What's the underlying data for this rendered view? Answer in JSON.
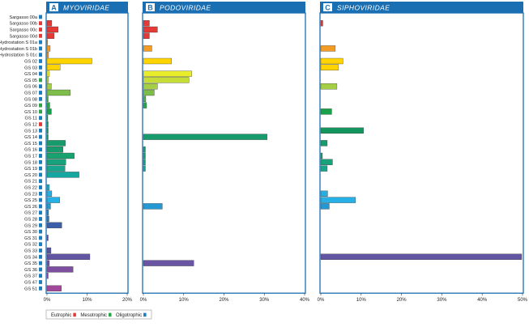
{
  "chart_data": {
    "type": "bar",
    "orientation": "horizontal",
    "sites": [
      "Sargasso 00a",
      "Sargasso 00b",
      "Sargasso 00c",
      "Sargasso 00d",
      "Hydrostation S 01a",
      "Hydrostation S 01b",
      "Hydrostation S 01c",
      "GS 02",
      "GS 03",
      "GS 04",
      "GS 05",
      "GS 06",
      "GS 07",
      "GS 08",
      "GS 09",
      "GS 10",
      "GS 11",
      "GS 12",
      "GS 13",
      "GS 14",
      "GS 15",
      "GS 16",
      "GS 17",
      "GS 18",
      "GS 19",
      "GS 20",
      "GS 21",
      "GS 22",
      "GS 23",
      "GS 25",
      "GS 26",
      "GS 27",
      "GS 28",
      "GS 29",
      "GS 30",
      "GS 31",
      "GS 32",
      "GS 33",
      "GS 34",
      "GS 35",
      "GS 36",
      "GS 37",
      "GS 47",
      "GS 51"
    ],
    "trophic": [
      "oligotrophic",
      "eutrophic",
      "eutrophic",
      "eutrophic",
      "oligotrophic",
      "oligotrophic",
      "oligotrophic",
      "oligotrophic",
      "oligotrophic",
      "oligotrophic",
      "mesotrophic",
      "oligotrophic",
      "oligotrophic",
      "oligotrophic",
      "mesotrophic",
      "mesotrophic",
      "oligotrophic",
      "eutrophic",
      "oligotrophic",
      "oligotrophic",
      "oligotrophic",
      "oligotrophic",
      "oligotrophic",
      "oligotrophic",
      "oligotrophic",
      "oligotrophic",
      "oligotrophic",
      "oligotrophic",
      "oligotrophic",
      "oligotrophic",
      "oligotrophic",
      "oligotrophic",
      "oligotrophic",
      "oligotrophic",
      "oligotrophic",
      "oligotrophic",
      "oligotrophic",
      "oligotrophic",
      "oligotrophic",
      "oligotrophic",
      "oligotrophic",
      "oligotrophic",
      "oligotrophic",
      "oligotrophic"
    ],
    "bar_colors": [
      "#e53935",
      "#e53935",
      "#e53935",
      "#e53935",
      "#f39c25",
      "#f39c25",
      "#f39c25",
      "#ffd400",
      "#ffd400",
      "#e9ec2a",
      "#c6dd38",
      "#a4cf45",
      "#7dbd4a",
      "#52ae49",
      "#2ea44a",
      "#19a04b",
      "#169d55",
      "#149a60",
      "#13955d",
      "#179a6c",
      "#179a6c",
      "#179a6c",
      "#17a26f",
      "#17a27c",
      "#17a68d",
      "#16a8a0",
      "#1ba6ae",
      "#23a8c8",
      "#27aede",
      "#27b0e6",
      "#2398d2",
      "#2387c5",
      "#2a74b9",
      "#3a5fa8",
      "#4a55a2",
      "#5054a0",
      "#5553a0",
      "#5653a0",
      "#6155a4",
      "#6a55a4",
      "#7e4f9f",
      "#8a4f9f",
      "#9b4b9c",
      "#a2489a"
    ],
    "trophic_colors": {
      "eutrophic": "#e53935",
      "mesotrophic": "#2ea44a",
      "oligotrophic": "#1a7fc1"
    },
    "panels": [
      {
        "letter": "A",
        "title": "MYOVIRIDAE",
        "xlim": [
          0,
          20
        ],
        "xticks": [
          "0%",
          "10%",
          "20%"
        ],
        "values": [
          0,
          1.2,
          2.8,
          1.8,
          0.1,
          0.8,
          0.4,
          11.2,
          3.3,
          0.6,
          0.4,
          1.1,
          5.8,
          0.3,
          0.7,
          1.1,
          0.2,
          0.3,
          0.3,
          0.3,
          4.6,
          4.0,
          6.8,
          4.7,
          4.5,
          8.0,
          0,
          0.6,
          1.2,
          3.2,
          0.9,
          0.4,
          0.5,
          3.7,
          0,
          0.3,
          0,
          1.0,
          10.7,
          0.6,
          6.5,
          0.3,
          0,
          3.6
        ]
      },
      {
        "letter": "B",
        "title": "PODOVIRIDAE",
        "xlim": [
          0,
          40
        ],
        "xticks": [
          "0%",
          "10%",
          "20%",
          "30%",
          "40%"
        ],
        "values": [
          0,
          1.5,
          3.5,
          1.5,
          0,
          2.1,
          0,
          7.0,
          0,
          12.0,
          11.3,
          3.5,
          2.7,
          0.6,
          0.8,
          0,
          0,
          0,
          0,
          30.7,
          0,
          0.5,
          0.5,
          0.5,
          0.5,
          0,
          0,
          0,
          0,
          0,
          4.7,
          0,
          0,
          0,
          0,
          0,
          0,
          0,
          0,
          12.5,
          0,
          0,
          0,
          0
        ]
      },
      {
        "letter": "C",
        "title": "SIPHOVIRIDAE",
        "xlim": [
          0,
          50
        ],
        "xticks": [
          "0%",
          "10%",
          "20%",
          "30%",
          "40%",
          "50%"
        ],
        "values": [
          0,
          0.5,
          0,
          0,
          0,
          3.6,
          0,
          5.5,
          4.4,
          0,
          0,
          4.0,
          0,
          0,
          0,
          2.7,
          0,
          0,
          10.6,
          0,
          1.6,
          0,
          0.4,
          2.9,
          1.6,
          0,
          0,
          0,
          1.7,
          8.6,
          2.1,
          0,
          0,
          0,
          0,
          0,
          0,
          0,
          49.8,
          0,
          0,
          0,
          0,
          0
        ]
      }
    ],
    "legend": [
      {
        "label": "Eutrophic",
        "color": "#e53935"
      },
      {
        "label": "Mesotrophic",
        "color": "#2ea44a"
      },
      {
        "label": "Oligotrophic",
        "color": "#1a7fc1"
      }
    ],
    "legend_position": "bottom-left",
    "grid": false
  }
}
